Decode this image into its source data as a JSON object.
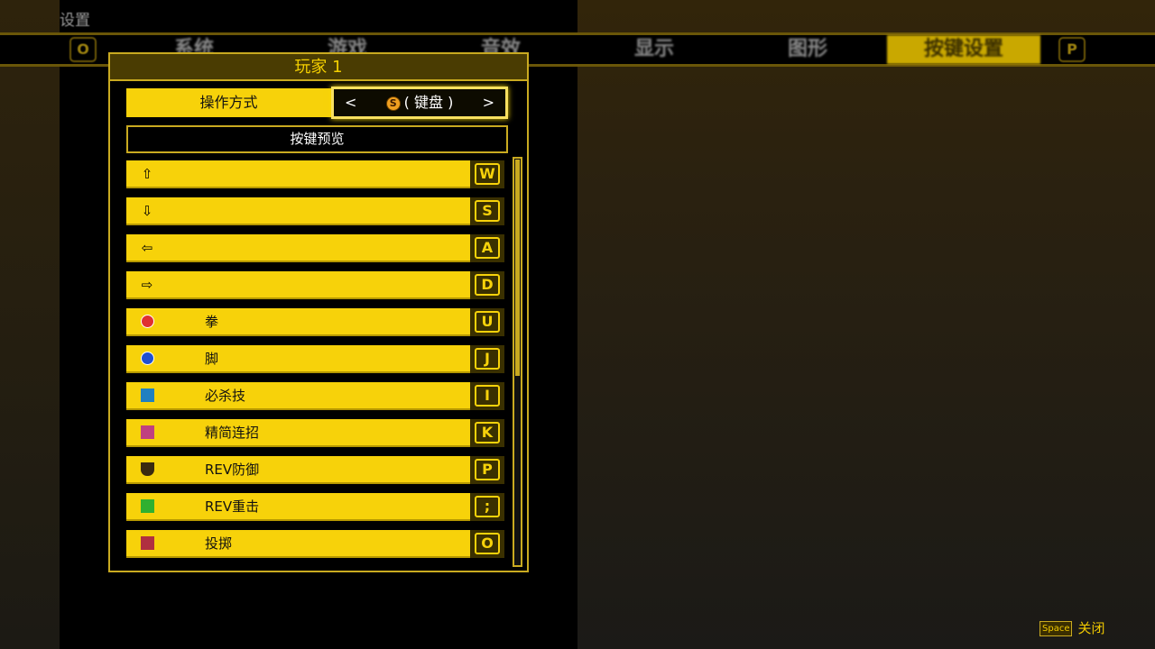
{
  "header": {
    "title": "设置"
  },
  "tabs": {
    "prev_key": "O",
    "next_key": "P",
    "items": [
      {
        "label": "系统"
      },
      {
        "label": "游戏"
      },
      {
        "label": "音效"
      },
      {
        "label": "显示"
      },
      {
        "label": "图形"
      },
      {
        "label": "按键设置",
        "active": true
      }
    ]
  },
  "panel": {
    "title": "玩家 1",
    "mode_label": "操作方式",
    "mode_value": "( 键盘 )",
    "mode_icon_letter": "S",
    "mode_prev": "<",
    "mode_next": ">",
    "preview_label": "按键预览",
    "rows": [
      {
        "icon": "arrow-up-icon",
        "label": "",
        "key": "W"
      },
      {
        "icon": "arrow-down-icon",
        "label": "",
        "key": "S"
      },
      {
        "icon": "arrow-left-icon",
        "label": "",
        "key": "A"
      },
      {
        "icon": "arrow-right-icon",
        "label": "",
        "key": "D"
      },
      {
        "icon": "punch-icon",
        "label": "拳",
        "key": "U"
      },
      {
        "icon": "kick-icon",
        "label": "脚",
        "key": "J"
      },
      {
        "icon": "special-move-icon",
        "label": "必杀技",
        "key": "I"
      },
      {
        "icon": "auto-combo-icon",
        "label": "精简连招",
        "key": "K"
      },
      {
        "icon": "rev-guard-icon",
        "label": "REV防御",
        "key": "P"
      },
      {
        "icon": "rev-blow-icon",
        "label": "REV重击",
        "key": ";"
      },
      {
        "icon": "throw-icon",
        "label": "投掷",
        "key": "O"
      }
    ],
    "scroll_position": 0
  },
  "footer": {
    "close_key": "Space",
    "close_label": "关闭"
  },
  "colors": {
    "accent": "#f7d20a",
    "border": "#c9aa20"
  }
}
